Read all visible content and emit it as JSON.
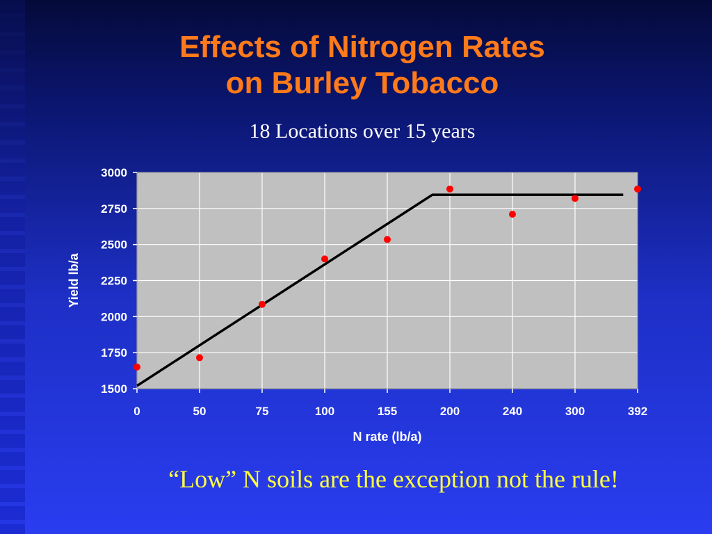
{
  "slide": {
    "title_line1": "Effects of Nitrogen Rates",
    "title_line2": "on Burley Tobacco",
    "subtitle": "18 Locations over 15 years",
    "footer": "“Low” N soils are the exception not the rule!"
  },
  "colors": {
    "title": "#ff7a1a",
    "subtitle": "#ffffff",
    "footer": "#ffff40",
    "plot_bg": "#c0c0c0",
    "points": "#ff0000",
    "line": "#000000"
  },
  "chart_data": {
    "type": "scatter",
    "xlabel": "N rate (lb/a)",
    "ylabel": "Yield lb/a",
    "x_categories": [
      "0",
      "50",
      "75",
      "100",
      "155",
      "200",
      "240",
      "300",
      "392"
    ],
    "ylim": [
      1500,
      3000
    ],
    "yticks": [
      1500,
      1750,
      2000,
      2250,
      2500,
      2750,
      3000
    ],
    "grid": true,
    "series": [
      {
        "type": "scatter",
        "points": [
          {
            "x": "0",
            "y": 1650
          },
          {
            "x": "50",
            "y": 1715
          },
          {
            "x": "75",
            "y": 2085
          },
          {
            "x": "100",
            "y": 2400
          },
          {
            "x": "155",
            "y": 2535
          },
          {
            "x": "200",
            "y": 2885
          },
          {
            "x": "240",
            "y": 2710
          },
          {
            "x": "300",
            "y": 2820
          },
          {
            "x": "392",
            "y": 2885
          }
        ]
      },
      {
        "type": "line",
        "note_positions": "category index (0 = first tick)",
        "points": [
          {
            "x_index": 0,
            "y": 1520
          },
          {
            "x_index": 4.72,
            "y": 2845
          },
          {
            "x_index": 7.77,
            "y": 2845
          }
        ]
      }
    ]
  }
}
